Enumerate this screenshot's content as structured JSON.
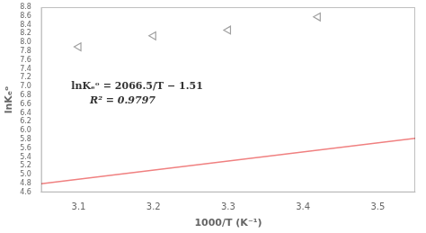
{
  "chart_data": {
    "type": "scatter",
    "x_label": "1000/T (K⁻¹)",
    "y_label": "lnKₑᵒ",
    "annotations": [
      "lnKₑᵒ = 2066.5/T − 1.51",
      "R² = 0.9797"
    ],
    "series": [
      {
        "type": "scatter",
        "color": "#a0a0a0",
        "marker": "triangle-left",
        "x": [
          3.1,
          3.2,
          3.3,
          3.42
        ],
        "values": [
          7.9,
          8.15,
          8.28,
          8.58
        ]
      },
      {
        "type": "line",
        "color": "#f08080",
        "line_style": "solid",
        "x": [
          3.05,
          3.55
        ],
        "values": [
          4.792825,
          5.826075
        ]
      }
    ],
    "xlim": [
      3.05,
      3.55
    ],
    "xticks": [
      3.1,
      3.2,
      3.3,
      3.4,
      3.5
    ],
    "ylim": [
      4.6,
      8.8
    ],
    "yticks": [
      4.6,
      4.8,
      {
        "value": 5.0,
        "label": "5.0"
      },
      5.2,
      5.4,
      5.6,
      5.8,
      {
        "value": 6.0,
        "label": "6.0"
      },
      6.2,
      6.4,
      6.6,
      6.8,
      {
        "value": 7.0,
        "label": "7.0"
      },
      7.2,
      7.4,
      7.6,
      7.8,
      {
        "value": 8.0,
        "label": "8.0"
      },
      8.2,
      8.4,
      8.6,
      8.8
    ],
    "grid": false
  }
}
